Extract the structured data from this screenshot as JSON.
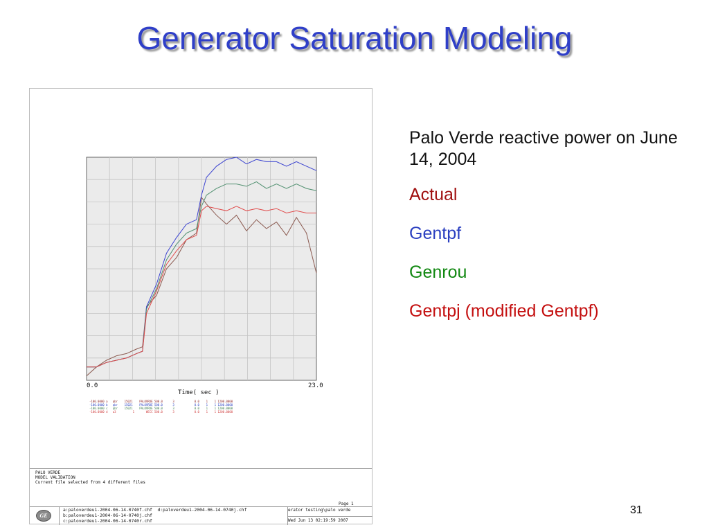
{
  "slide": {
    "title": "Generator Saturation Modeling",
    "number": "31"
  },
  "description": {
    "heading": "Palo Verde reactive power on June 14, 2004",
    "items": [
      {
        "label": "Actual",
        "color": "#a01010"
      },
      {
        "label": "Gentpf",
        "color": "#2a3fc0"
      },
      {
        "label": "Genrou",
        "color": "#118811"
      },
      {
        "label": "Gentpj (modified Gentpf)",
        "color": "#c41010"
      }
    ]
  },
  "chart_data": {
    "type": "line",
    "xlabel": "Time( sec )",
    "xlim": [
      0.0,
      23.0
    ],
    "x_tick_labels": [
      "0.0",
      "23.0"
    ],
    "grid": true,
    "series": [
      {
        "key": "a",
        "color": "#8b5a50",
        "x": [
          0,
          1,
          2,
          3,
          4,
          5,
          5.6,
          6,
          7,
          8,
          9,
          10,
          11,
          11.5,
          12,
          13,
          14,
          15,
          16,
          17,
          18,
          19,
          20,
          21,
          22,
          23
        ],
        "y": [
          0.02,
          0.06,
          0.09,
          0.11,
          0.12,
          0.14,
          0.15,
          0.33,
          0.38,
          0.5,
          0.55,
          0.63,
          0.66,
          0.82,
          0.79,
          0.74,
          0.7,
          0.74,
          0.67,
          0.72,
          0.68,
          0.71,
          0.65,
          0.73,
          0.66,
          0.48
        ]
      },
      {
        "key": "b",
        "color": "#3a42d0",
        "x": [
          0,
          1,
          2,
          3,
          4,
          5,
          5.6,
          6,
          7,
          8,
          9,
          10,
          11,
          11.5,
          12,
          13,
          14,
          15,
          16,
          17,
          18,
          19,
          20,
          21,
          22,
          23
        ],
        "y": [
          0.06,
          0.06,
          0.08,
          0.09,
          0.1,
          0.12,
          0.13,
          0.33,
          0.43,
          0.57,
          0.64,
          0.7,
          0.72,
          0.83,
          0.91,
          0.96,
          0.99,
          1.0,
          0.97,
          0.99,
          0.98,
          0.98,
          0.96,
          0.98,
          0.96,
          0.94
        ]
      },
      {
        "key": "c",
        "color": "#4f8f6f",
        "x": [
          0,
          1,
          2,
          3,
          4,
          5,
          5.6,
          6,
          7,
          8,
          9,
          10,
          11,
          11.5,
          12,
          13,
          14,
          15,
          16,
          17,
          18,
          19,
          20,
          21,
          22,
          23
        ],
        "y": [
          0.06,
          0.06,
          0.08,
          0.09,
          0.1,
          0.12,
          0.13,
          0.32,
          0.41,
          0.54,
          0.61,
          0.66,
          0.68,
          0.78,
          0.83,
          0.86,
          0.88,
          0.88,
          0.87,
          0.89,
          0.86,
          0.88,
          0.86,
          0.88,
          0.86,
          0.85
        ]
      },
      {
        "key": "d",
        "color": "#e04a4a",
        "x": [
          0,
          1,
          2,
          3,
          4,
          5,
          5.6,
          6,
          7,
          8,
          9,
          10,
          11,
          11.5,
          12,
          13,
          14,
          15,
          16,
          17,
          18,
          19,
          20,
          21,
          22,
          23
        ],
        "y": [
          0.06,
          0.06,
          0.08,
          0.09,
          0.1,
          0.12,
          0.13,
          0.3,
          0.4,
          0.52,
          0.58,
          0.63,
          0.65,
          0.76,
          0.78,
          0.77,
          0.76,
          0.78,
          0.76,
          0.77,
          0.76,
          0.77,
          0.75,
          0.76,
          0.75,
          0.75
        ]
      }
    ],
    "legend": [
      "-100.0000 a   qbr    15021    PALOVRDE 500.0      3            0.0    1    1 1200.0000",
      "-100.0000 b   qbr    15021    PALOVRDE 500.0      3            0.0    1    1 1200.0000",
      "-100.0000 c   qbr    15021    PALOVRDE 500.0      3            0.0    1    1 1200.0000",
      "-100.0000 d   a3          1       WECC 500.0      3            0.0    1    1 1200.0000"
    ]
  },
  "footer": {
    "notes": [
      "PALO VERDE",
      "MODEL VALIDATION",
      "Current file selected from 4 different files"
    ],
    "page_label": "Page 1",
    "logo_text": "GE",
    "files": [
      "a:paloverdeu1-2004-06-14-0740f.chf  d:paloverdeu1-2004-06-14-0740j.chf",
      "b:paloverdeu1-2004-06-14-0740j.chf",
      "c:paloverdeu1-2004-06-14-0740r.chf"
    ],
    "path": "erator testing\\palo verde",
    "timestamp": "Wed Jun 13 02:19:59 2007"
  }
}
